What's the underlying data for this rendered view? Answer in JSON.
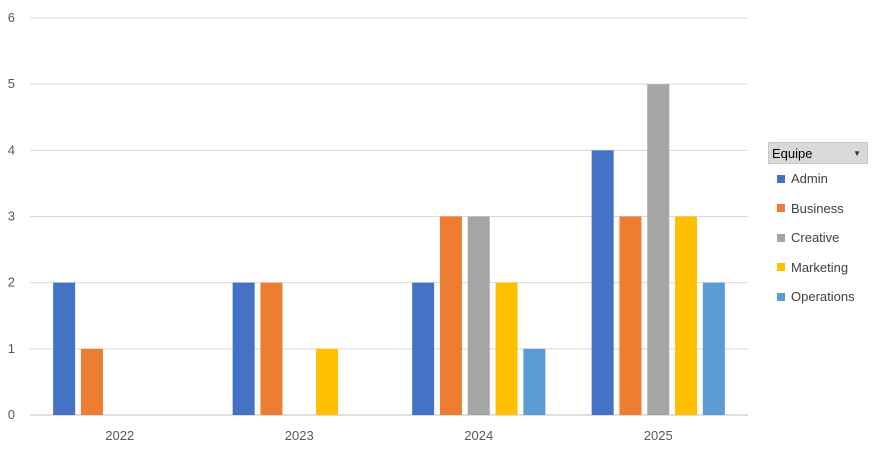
{
  "chart_data": {
    "type": "bar",
    "categories": [
      "2022",
      "2023",
      "2024",
      "2025"
    ],
    "series": [
      {
        "name": "Admin",
        "color": "#4472C4",
        "values": [
          2,
          2,
          2,
          4
        ]
      },
      {
        "name": "Business",
        "color": "#ED7D31",
        "values": [
          1,
          2,
          3,
          3
        ]
      },
      {
        "name": "Creative",
        "color": "#A5A5A5",
        "values": [
          0,
          0,
          3,
          5
        ]
      },
      {
        "name": "Marketing",
        "color": "#FFC000",
        "values": [
          0,
          1,
          2,
          3
        ]
      },
      {
        "name": "Operations",
        "color": "#5B9BD5",
        "values": [
          0,
          0,
          1,
          2
        ]
      }
    ],
    "ylim": [
      0,
      6
    ],
    "yticks": [
      "0",
      "1",
      "2",
      "3",
      "4",
      "5",
      "6"
    ],
    "grid": true,
    "legend": {
      "title": "Equipe",
      "placement": "right"
    }
  },
  "colors": {
    "grid": "#d9d9d9",
    "axis": "#bfbfbf",
    "text": "#595959"
  }
}
